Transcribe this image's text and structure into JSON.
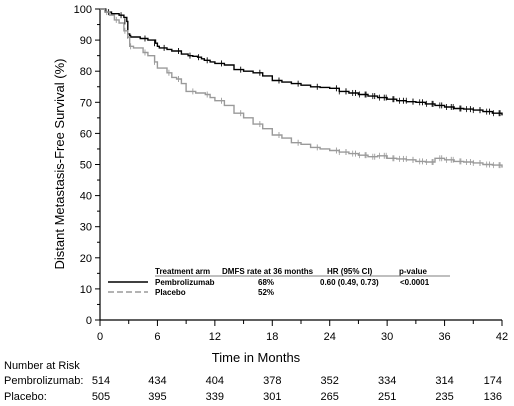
{
  "chart_data": {
    "type": "line",
    "ylabel": "Distant Metastasis-Free Survival (%)",
    "xlabel": "Time in Months",
    "xlim": [
      0,
      42
    ],
    "ylim": [
      0,
      100
    ],
    "x_ticks": [
      0,
      6,
      12,
      18,
      24,
      30,
      36,
      42
    ],
    "y_ticks": [
      0,
      10,
      20,
      30,
      40,
      50,
      60,
      70,
      80,
      90,
      100
    ],
    "grid": false,
    "legend_placement": "bottom",
    "legend": {
      "headers": [
        "Treatment arm",
        "DMFS rate at 36 months",
        "HR (95% CI)",
        "p-value"
      ],
      "rows": [
        {
          "arm": "Pembrolizumab",
          "rate": "68%",
          "hr": "0.60 (0.49, 0.73)",
          "p": "<0.0001"
        },
        {
          "arm": "Placebo",
          "rate": "52%",
          "hr": "",
          "p": ""
        }
      ]
    },
    "series": [
      {
        "name": "Pembrolizumab",
        "color": "#000000",
        "style": "solid",
        "x": [
          0,
          0.6,
          1.2,
          2.0,
          2.5,
          2.8,
          2.9,
          3.1,
          3.2,
          4.2,
          5.0,
          5.8,
          6.0,
          6.2,
          7.0,
          7.5,
          8.5,
          9.2,
          9.7,
          10.2,
          10.6,
          10.9,
          11.5,
          12.0,
          13.0,
          14.0,
          15.0,
          16.0,
          17.0,
          18.0,
          19.0,
          20.0,
          21.0,
          22.0,
          23.0,
          24.0,
          25.0,
          26.0,
          27.0,
          28.0,
          29.0,
          30.0,
          31.0,
          32.0,
          33.0,
          34.0,
          35.0,
          36.0,
          37.0,
          38.0,
          39.0,
          40.0,
          41.0,
          42.0
        ],
        "y": [
          100,
          99,
          98.5,
          98,
          97.3,
          96,
          92,
          91.5,
          91,
          90.5,
          90,
          89,
          88,
          87.5,
          87,
          86.5,
          85.5,
          85,
          84.8,
          84.5,
          84,
          83.5,
          83,
          82.5,
          82,
          80.5,
          80,
          79.5,
          78.5,
          77,
          76.5,
          76,
          75.5,
          75,
          74.8,
          74.5,
          73.5,
          73,
          72.5,
          72,
          71.5,
          71,
          70.5,
          70.2,
          70,
          69.5,
          69,
          68.5,
          68,
          67.8,
          67.5,
          67,
          66.5,
          65.8
        ]
      },
      {
        "name": "Placebo",
        "color": "#9a9a9a",
        "style": "dashed",
        "x": [
          0,
          0.5,
          1.0,
          1.5,
          2.0,
          2.5,
          2.9,
          3.1,
          3.5,
          4.5,
          5.0,
          5.7,
          6.0,
          7.0,
          7.5,
          8.0,
          8.5,
          9.0,
          10.0,
          11.0,
          11.5,
          12.0,
          13.0,
          14.0,
          15.0,
          16.0,
          17.0,
          18.0,
          19.0,
          20.0,
          21.0,
          22.0,
          23.0,
          24.0,
          25.0,
          26.0,
          27.0,
          28.0,
          29.0,
          30.0,
          31.0,
          32.0,
          33.0,
          34.0,
          35.0,
          36.0,
          37.0,
          38.0,
          39.0,
          40.0,
          41.0,
          42.0
        ],
        "y": [
          100,
          99,
          98,
          96.5,
          95.5,
          93,
          91,
          88,
          87.5,
          86,
          85,
          83,
          81,
          79.5,
          78,
          77.5,
          76,
          73.5,
          73,
          72.5,
          71.5,
          70.5,
          69,
          66.5,
          65,
          63,
          61.5,
          59.5,
          58.5,
          57,
          56.5,
          55.5,
          55,
          54.5,
          54,
          53.5,
          53,
          52.5,
          52.8,
          52,
          51.8,
          51.5,
          51,
          50.8,
          52,
          51.5,
          51,
          50.8,
          50.5,
          50,
          49.8,
          49
        ]
      }
    ],
    "risk_table": {
      "header": "Number at Risk",
      "time_points": [
        0,
        6,
        12,
        18,
        24,
        30,
        36,
        42
      ],
      "rows": [
        {
          "label": "Pembrolizumab:",
          "values": [
            "514",
            "434",
            "404",
            "378",
            "352",
            "334",
            "314",
            "174"
          ]
        },
        {
          "label": "Placebo:",
          "values": [
            "505",
            "395",
            "339",
            "301",
            "265",
            "251",
            "235",
            "136"
          ]
        }
      ]
    }
  }
}
